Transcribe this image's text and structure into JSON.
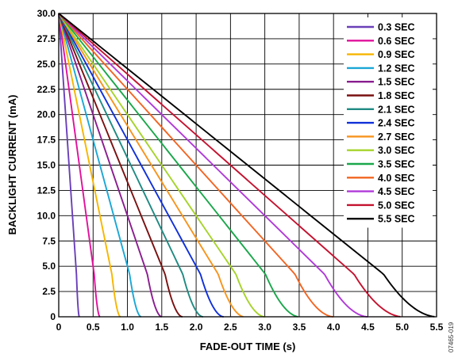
{
  "chart_data": {
    "type": "line",
    "title": "",
    "xlabel": "FADE-OUT TIME (s)",
    "ylabel": "BACKLIGHT CURRENT (mA)",
    "xlim": [
      0,
      5.5
    ],
    "ylim": [
      0,
      30
    ],
    "x_ticks": [
      "0",
      "0.5",
      "1.0",
      "1.5",
      "2.0",
      "2.5",
      "3.0",
      "3.5",
      "4.0",
      "4.5",
      "5.0",
      "5.5"
    ],
    "y_ticks": [
      "0",
      "2.5",
      "5.0",
      "7.5",
      "10.0",
      "12.5",
      "15.0",
      "17.5",
      "20.0",
      "22.5",
      "25.0",
      "27.5",
      "30.0"
    ],
    "grid": true,
    "legend_position": "top-right",
    "initial_current": 30,
    "curve_shape": "fade-out decreases from 30 mA to 0 mA over each fade-out time with a rounded tail near zero",
    "series": [
      {
        "name": "0.3 SEC",
        "fade_time": 0.3,
        "color": "#6a3fb8"
      },
      {
        "name": "0.6 SEC",
        "fade_time": 0.6,
        "color": "#e0119b"
      },
      {
        "name": "0.9 SEC",
        "fade_time": 0.9,
        "color": "#f7b500"
      },
      {
        "name": "1.2 SEC",
        "fade_time": 1.2,
        "color": "#1aa7d6"
      },
      {
        "name": "1.5 SEC",
        "fade_time": 1.5,
        "color": "#8a1d8f"
      },
      {
        "name": "1.8 SEC",
        "fade_time": 1.8,
        "color": "#7a1010"
      },
      {
        "name": "2.1 SEC",
        "fade_time": 2.1,
        "color": "#1f8a82"
      },
      {
        "name": "2.4 SEC",
        "fade_time": 2.4,
        "color": "#1030d8"
      },
      {
        "name": "2.7 SEC",
        "fade_time": 2.7,
        "color": "#f7941d"
      },
      {
        "name": "3.0 SEC",
        "fade_time": 3.0,
        "color": "#a6d32b"
      },
      {
        "name": "3.5 SEC",
        "fade_time": 3.5,
        "color": "#1aa74a"
      },
      {
        "name": "4.0 SEC",
        "fade_time": 4.0,
        "color": "#f26522"
      },
      {
        "name": "4.5 SEC",
        "fade_time": 4.5,
        "color": "#b03ad8"
      },
      {
        "name": "5.0 SEC",
        "fade_time": 5.0,
        "color": "#c4122f"
      },
      {
        "name": "5.5 SEC",
        "fade_time": 5.5,
        "color": "#000000"
      }
    ],
    "figure_id": "07465-019"
  }
}
